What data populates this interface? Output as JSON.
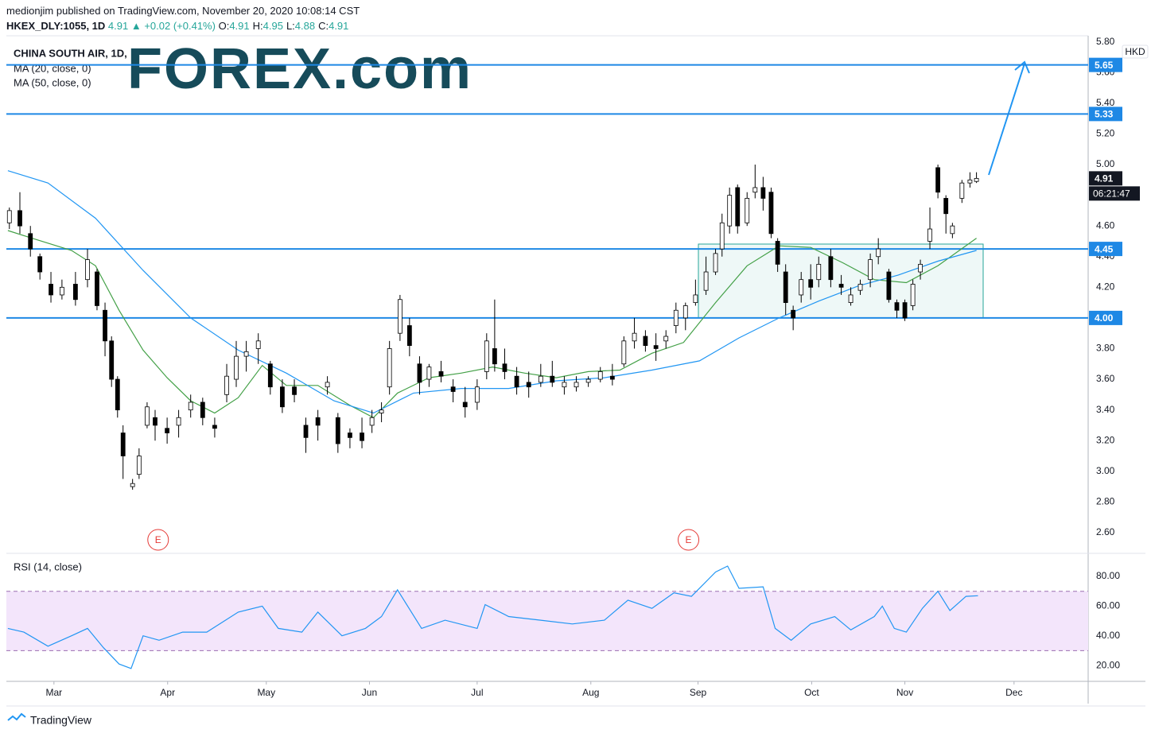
{
  "header": {
    "publisher": "medionjim published on TradingView.com, November 20, 2020 10:08:14 CST",
    "symbol": "HKEX_DLY:1055, 1D",
    "last": "4.91",
    "change": "▲ +0.02 (+0.41%)",
    "ohlc": [
      {
        "k": "O:",
        "v": "4.91"
      },
      {
        "k": "H:",
        "v": "4.95"
      },
      {
        "k": "L:",
        "v": "4.88"
      },
      {
        "k": "C:",
        "v": "4.91"
      }
    ]
  },
  "logo": "FOREX.com",
  "footer": "TradingView",
  "chart_data": [
    {
      "type": "candlestick",
      "title": "CHINA SOUTH AIR, 1D,",
      "currency": "HKD",
      "up_color": "#ffffff",
      "down_color": "#000000",
      "x": [
        0.6,
        2.7,
        4.8,
        6.7,
        8.9,
        11.1,
        13.8,
        16.2,
        18.1,
        19.7,
        21,
        22.2,
        23.3,
        25.2,
        26.5,
        28.1,
        29.7,
        32.1,
        34.4,
        36.8,
        39.2,
        41.6,
        44,
        45.9,
        47.9,
        50.3,
        52.7,
        55.1,
        57.5,
        59.8,
        62.2,
        64.1,
        66.2,
        68.6,
        71,
        73,
        74.9,
        76.5,
        78.6,
        80.5,
        82.5,
        84.4,
        86.8,
        89.2,
        91.6,
        94,
        95.9,
        97.5,
        99.5,
        101.9,
        104.3,
        106.7,
        109,
        111.4,
        113.8,
        116.2,
        118.6,
        121,
        123.3,
        125.4,
        127.6,
        129.7,
        131.7,
        133.7,
        135.6,
        137.6,
        139.7,
        141.6,
        142.9,
        144.4,
        146,
        147.9,
        149.5,
        151.1,
        152.7,
        154,
        155.6,
        157.1,
        158.7,
        160.6,
        162.2,
        164.6,
        166.7,
        168.6,
        170.5,
        172.5,
        174.1,
        176.2,
        177.8,
        179.4,
        181,
        182.5,
        184.4,
        186,
        187.6,
        188.9,
        190.8,
        192.4,
        193.7
      ],
      "open": [
        4.62,
        4.7,
        4.55,
        4.4,
        4.22,
        4.15,
        4.22,
        4.25,
        4.3,
        4.05,
        3.85,
        3.6,
        3.25,
        2.9,
        2.98,
        3.3,
        3.35,
        3.28,
        3.3,
        3.4,
        3.45,
        3.3,
        3.5,
        3.6,
        3.75,
        3.8,
        3.7,
        3.55,
        3.55,
        3.3,
        3.35,
        3.55,
        3.35,
        3.25,
        3.25,
        3.3,
        3.38,
        3.55,
        3.9,
        3.95,
        3.7,
        3.6,
        3.65,
        3.55,
        3.45,
        3.45,
        3.65,
        3.8,
        3.7,
        3.62,
        3.58,
        3.58,
        3.62,
        3.55,
        3.55,
        3.58,
        3.6,
        3.62,
        3.7,
        3.85,
        3.88,
        3.82,
        3.85,
        3.95,
        4.0,
        4.1,
        4.18,
        4.3,
        4.45,
        4.6,
        4.85,
        4.62,
        4.82,
        4.85,
        4.82,
        4.5,
        4.3,
        4.05,
        4.15,
        4.25,
        4.25,
        4.4,
        4.22,
        4.1,
        4.18,
        4.25,
        4.4,
        4.3,
        4.1,
        4.1,
        4.08,
        4.3,
        4.5,
        4.98,
        4.78,
        4.55,
        4.78,
        4.88,
        4.89
      ],
      "high": [
        4.72,
        4.82,
        4.6,
        4.42,
        4.3,
        4.25,
        4.3,
        4.45,
        4.32,
        4.1,
        3.88,
        3.62,
        3.3,
        2.95,
        3.15,
        3.45,
        3.4,
        3.35,
        3.4,
        3.5,
        3.48,
        3.35,
        3.7,
        3.85,
        3.85,
        3.9,
        3.72,
        3.6,
        3.6,
        3.35,
        3.4,
        3.62,
        3.38,
        3.28,
        3.35,
        3.4,
        3.45,
        3.85,
        4.15,
        4.0,
        3.75,
        3.7,
        3.72,
        3.6,
        3.55,
        3.6,
        3.9,
        4.12,
        3.8,
        3.68,
        3.65,
        3.7,
        3.72,
        3.62,
        3.62,
        3.62,
        3.68,
        3.7,
        3.88,
        4.0,
        3.92,
        3.9,
        3.92,
        4.1,
        4.1,
        4.25,
        4.4,
        4.45,
        4.68,
        4.85,
        4.87,
        4.82,
        5.0,
        4.92,
        4.85,
        4.52,
        4.35,
        4.08,
        4.3,
        4.35,
        4.4,
        4.45,
        4.28,
        4.2,
        4.25,
        4.42,
        4.52,
        4.32,
        4.12,
        4.12,
        4.25,
        4.38,
        4.72,
        5.0,
        4.8,
        4.62,
        4.9,
        4.95,
        4.95
      ],
      "low": [
        4.58,
        4.55,
        4.4,
        4.25,
        4.1,
        4.12,
        4.08,
        4.2,
        4.05,
        3.75,
        3.55,
        3.35,
        2.95,
        2.88,
        2.95,
        3.28,
        3.2,
        3.18,
        3.22,
        3.35,
        3.3,
        3.22,
        3.45,
        3.55,
        3.65,
        3.7,
        3.5,
        3.38,
        3.45,
        3.12,
        3.2,
        3.5,
        3.12,
        3.15,
        3.15,
        3.25,
        3.32,
        3.5,
        3.85,
        3.75,
        3.5,
        3.55,
        3.58,
        3.45,
        3.35,
        3.4,
        3.6,
        3.65,
        3.6,
        3.5,
        3.48,
        3.55,
        3.55,
        3.5,
        3.52,
        3.55,
        3.58,
        3.56,
        3.68,
        3.8,
        3.78,
        3.72,
        3.8,
        3.9,
        3.92,
        4.08,
        4.15,
        4.28,
        4.4,
        4.55,
        4.55,
        4.6,
        4.78,
        4.7,
        4.52,
        4.3,
        4.02,
        3.92,
        4.1,
        4.12,
        4.2,
        4.2,
        4.15,
        4.08,
        4.15,
        4.2,
        4.35,
        4.1,
        4.0,
        3.98,
        4.05,
        4.25,
        4.45,
        4.78,
        4.55,
        4.52,
        4.75,
        4.85,
        4.88
      ],
      "close": [
        4.7,
        4.6,
        4.45,
        4.3,
        4.15,
        4.2,
        4.12,
        4.38,
        4.08,
        3.85,
        3.6,
        3.4,
        3.1,
        2.92,
        3.1,
        3.42,
        3.3,
        3.25,
        3.35,
        3.45,
        3.35,
        3.28,
        3.62,
        3.75,
        3.78,
        3.85,
        3.55,
        3.42,
        3.5,
        3.22,
        3.3,
        3.58,
        3.18,
        3.22,
        3.2,
        3.35,
        3.4,
        3.8,
        4.12,
        3.82,
        3.58,
        3.68,
        3.62,
        3.52,
        3.42,
        3.55,
        3.85,
        3.7,
        3.65,
        3.55,
        3.55,
        3.62,
        3.58,
        3.58,
        3.58,
        3.6,
        3.65,
        3.6,
        3.85,
        3.9,
        3.82,
        3.8,
        3.88,
        4.05,
        4.08,
        4.15,
        4.3,
        4.42,
        4.62,
        4.8,
        4.6,
        4.78,
        4.85,
        4.78,
        4.55,
        4.35,
        4.1,
        4.0,
        4.25,
        4.2,
        4.35,
        4.25,
        4.2,
        4.15,
        4.22,
        4.38,
        4.45,
        4.12,
        4.05,
        4.0,
        4.22,
        4.35,
        4.58,
        4.82,
        4.68,
        4.6,
        4.88,
        4.9,
        4.91
      ],
      "series": [
        {
          "name": "MA (20, close, 0)",
          "color": "#43a047",
          "x": [
            0.3,
            5.1,
            13,
            17.8,
            22.5,
            27.3,
            32.1,
            36.8,
            41.6,
            46.3,
            51.1,
            55.9,
            62.2,
            68.6,
            73.3,
            78.1,
            84.4,
            90.8,
            97.1,
            103.5,
            109.8,
            116.2,
            122.5,
            128.9,
            135.2,
            141.6,
            147.9,
            154.3,
            160.6,
            167,
            173.3,
            179.7,
            186,
            193.7
          ],
          "values": [
            4.57,
            4.52,
            4.44,
            4.34,
            4.05,
            3.79,
            3.61,
            3.46,
            3.38,
            3.48,
            3.69,
            3.56,
            3.56,
            3.43,
            3.35,
            3.51,
            3.61,
            3.64,
            3.68,
            3.64,
            3.61,
            3.65,
            3.66,
            3.77,
            3.84,
            4.1,
            4.34,
            4.47,
            4.46,
            4.36,
            4.25,
            4.23,
            4.34,
            4.52
          ]
        },
        {
          "name": "MA (50, close, 0)",
          "color": "#2196f3",
          "x": [
            0.3,
            8.3,
            17.8,
            27.3,
            36.8,
            46.3,
            55.9,
            65.4,
            73.3,
            81.3,
            90.8,
            100.3,
            109.8,
            119.4,
            128.9,
            138.4,
            146.3,
            154.3,
            162.2,
            170.2,
            178.1,
            186,
            193.7
          ],
          "values": [
            4.96,
            4.88,
            4.65,
            4.31,
            4.0,
            3.79,
            3.64,
            3.46,
            3.38,
            3.51,
            3.54,
            3.54,
            3.59,
            3.61,
            3.66,
            3.72,
            3.87,
            4.0,
            4.11,
            4.21,
            4.28,
            4.37,
            4.44
          ]
        }
      ],
      "xlim": [
        0,
        216
      ],
      "xticks": [
        {
          "value": 9.5,
          "label": "Mar"
        },
        {
          "value": 32.2,
          "label": "Apr"
        },
        {
          "value": 51.9,
          "label": "May"
        },
        {
          "value": 72.5,
          "label": "Jun"
        },
        {
          "value": 94,
          "label": "Jul"
        },
        {
          "value": 116.7,
          "label": "Aug"
        },
        {
          "value": 138.1,
          "label": "Sep"
        },
        {
          "value": 160.8,
          "label": "Oct"
        },
        {
          "value": 179.4,
          "label": "Nov"
        },
        {
          "value": 201.2,
          "label": "Dec"
        }
      ],
      "ylim": [
        2.47,
        5.84
      ],
      "yticks": [
        {
          "value": 5.8,
          "label": "5.80"
        },
        {
          "value": 5.6,
          "label": "5.60"
        },
        {
          "value": 5.4,
          "label": "5.40"
        },
        {
          "value": 5.2,
          "label": "5.20"
        },
        {
          "value": 5,
          "label": "5.00"
        },
        {
          "value": 4.6,
          "label": "4.60"
        },
        {
          "value": 4.4,
          "label": "4.40"
        },
        {
          "value": 4.2,
          "label": "4.20"
        },
        {
          "value": 3.8,
          "label": "3.80"
        },
        {
          "value": 3.6,
          "label": "3.60"
        },
        {
          "value": 3.4,
          "label": "3.40"
        },
        {
          "value": 3.2,
          "label": "3.20"
        },
        {
          "value": 3,
          "label": "3.00"
        },
        {
          "value": 2.8,
          "label": "2.80"
        },
        {
          "value": 2.6,
          "label": "2.60"
        }
      ],
      "levels": [
        5.65,
        5.33,
        4.45,
        {
          "value": 4,
          "label": "4.00"
        }
      ],
      "level_color": "#1e88e5",
      "last_price": 4.91,
      "countdown": "06:21:47",
      "events": [
        {
          "x": 30.3,
          "label": "E"
        },
        {
          "x": 136.2,
          "label": "E"
        }
      ]
    },
    {
      "type": "line",
      "title": "RSI (14, close)",
      "color": "#2196f3",
      "band": [
        30,
        70
      ],
      "band_color": "#f3e5fb",
      "x": [
        0.3,
        3.5,
        8.3,
        13,
        16.2,
        19.4,
        22.5,
        24.9,
        27.3,
        30.5,
        35.2,
        40,
        46.3,
        51.1,
        54.3,
        59,
        62.2,
        67,
        71.7,
        74.9,
        78.1,
        82.9,
        87.6,
        94,
        95.6,
        100.3,
        106.7,
        113,
        119.4,
        124.1,
        128.9,
        133.3,
        136.8,
        141.6,
        144,
        146.3,
        151.1,
        153.5,
        156.7,
        160.6,
        165.4,
        168.6,
        173.3,
        174.9,
        177.3,
        179.7,
        182.9,
        186,
        188.4,
        191.6,
        194
      ],
      "values": [
        45,
        42.5,
        33,
        40,
        45,
        32,
        21,
        18,
        40,
        37,
        42.5,
        42.5,
        56,
        60,
        45,
        42.5,
        56,
        40,
        45,
        53,
        71,
        45,
        50.5,
        45,
        61,
        53,
        50.5,
        48,
        50.5,
        64,
        58.5,
        69,
        66.6,
        83,
        87,
        72,
        73,
        45,
        37,
        48,
        53,
        44,
        53,
        60,
        45,
        42.5,
        58.5,
        70,
        57,
        66.6,
        67
      ],
      "ylim": [
        10.4,
        94.5
      ],
      "yticks": [
        {
          "value": 80,
          "label": "80.00"
        },
        {
          "value": 60,
          "label": "60.00"
        },
        {
          "value": 40,
          "label": "40.00"
        },
        {
          "value": 20,
          "label": "20.00"
        }
      ]
    }
  ]
}
